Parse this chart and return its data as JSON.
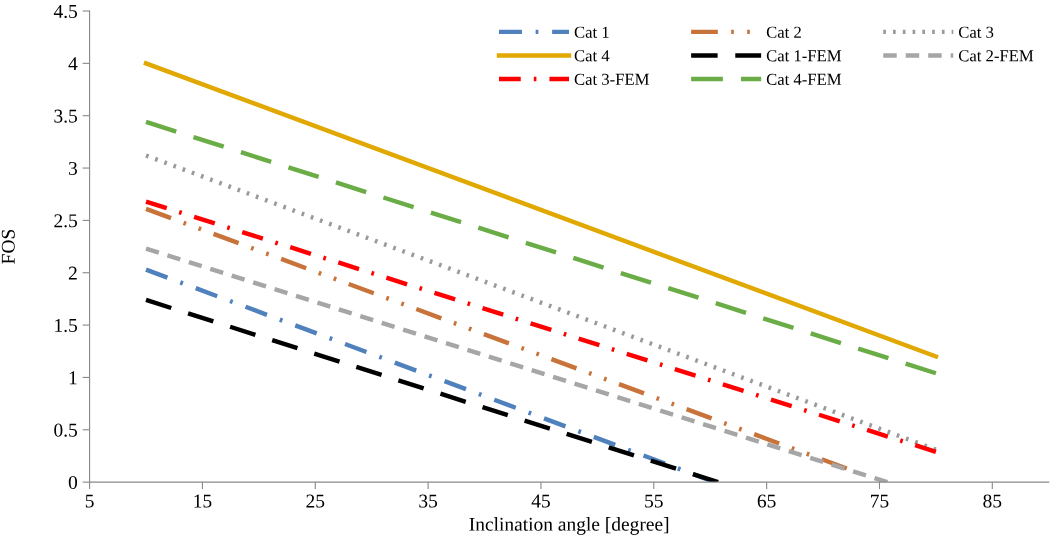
{
  "chart_data": {
    "type": "line",
    "xlabel": "Inclination angle [degree]",
    "ylabel": "FOS",
    "xlim": [
      5,
      90
    ],
    "xticks": [
      5,
      15,
      25,
      35,
      45,
      55,
      65,
      75,
      85
    ],
    "ylim": [
      0,
      4.5
    ],
    "yticks": [
      0,
      0.5,
      1,
      1.5,
      2,
      2.5,
      3,
      3.5,
      4,
      4.5
    ],
    "grid": false,
    "legend": "top right",
    "marker": "none",
    "series": [
      {
        "name": "Cat 1",
        "color": "#4f81bd",
        "line_style": "dashdot",
        "x": [
          10,
          60.4
        ],
        "values": [
          2.03,
          0
        ]
      },
      {
        "name": "Cat 2",
        "color": "#c8733a",
        "line_style": "longdashdotdot",
        "x": [
          10,
          72.1
        ],
        "values": [
          2.61,
          0.13
        ]
      },
      {
        "name": "Cat 3",
        "color": "#9a9a9a",
        "line_style": "dotted",
        "x": [
          10,
          80
        ],
        "values": [
          3.12,
          0.31
        ]
      },
      {
        "name": "Cat 4",
        "color": "#e0a800",
        "line_style": "solid",
        "x": [
          10,
          80
        ],
        "values": [
          4.0,
          1.2
        ]
      },
      {
        "name": "Cat 1-FEM",
        "color": "#000000",
        "line_style": "dashed",
        "x": [
          10,
          60.7
        ],
        "values": [
          1.74,
          0
        ]
      },
      {
        "name": "Cat 2-FEM",
        "color": "#a6a6a6",
        "line_style": "shortdashed",
        "x": [
          10,
          75.7
        ],
        "values": [
          2.23,
          0
        ]
      },
      {
        "name": "Cat 3-FEM",
        "color": "#ff0000",
        "line_style": "dashdot",
        "x": [
          10,
          80
        ],
        "values": [
          2.68,
          0.29
        ]
      },
      {
        "name": "Cat 4-FEM",
        "color": "#6aac46",
        "line_style": "longdashed",
        "x": [
          10,
          80
        ],
        "values": [
          3.44,
          1.04
        ]
      }
    ]
  }
}
